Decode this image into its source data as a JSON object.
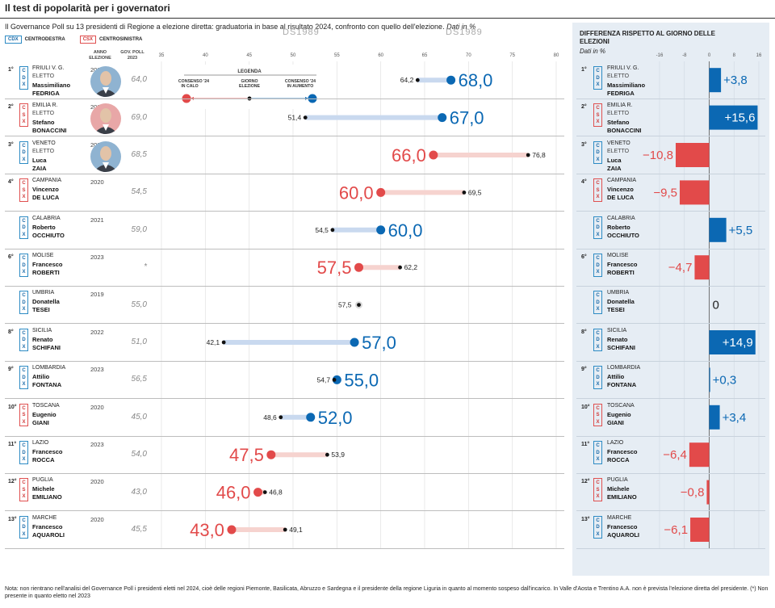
{
  "title": "Il test di popolarità per i governatori",
  "subtitle": "Il Governance Poll su 13 presidenti di Regione a elezione diretta: graduatoria in base al risultato 2024, confronto con quello dell'elezione.",
  "subtitle_unit": "Dati in %",
  "ghost_marks": [
    "DS1989",
    "DS1989"
  ],
  "coalition_legend": [
    {
      "code": "CDX",
      "label": "CENTRODESTRA",
      "color": "#1a6aa8"
    },
    {
      "code": "CSX",
      "label": "CENTROSINISTRA",
      "color": "#d03a3a"
    }
  ],
  "column_headers": {
    "year": "ANNO ELEZIONE",
    "poll": "GOV. POLL 2023"
  },
  "chart_legend": {
    "title": "LEGENDA",
    "left": "CONSENSO '24 IN CALO",
    "middle": "GIORNO ELEZIONE",
    "right": "CONSENSO '24 IN AUMENTO"
  },
  "panel": {
    "title": "DIFFERENZA RISPETTO AL GIORNO DELLE ELEZIONI",
    "unit": "Dati in %"
  },
  "eletto_label": "ELETTO",
  "colors": {
    "increase": "#0b68b3",
    "decrease": "#e24a4a",
    "increase_track": "#c9d9ef",
    "decrease_track": "#f6d3cf"
  },
  "footnote": "Nota: non rientrano nell'analisi del Governance Poll i presidenti eletti nel 2024, cioè delle regioni Piemonte, Basilicata, Abruzzo e Sardegna e il presidente della regione Liguria in quanto al momento sospeso dall'incarico. In Valle d'Aosta e Trentino A.A. non è prevista l'elezione diretta del presidente. (*) Non presente in quanto eletto nel 2023",
  "chart_data": [
    {
      "type": "dumbbell",
      "x_ticks": [
        "35",
        "40",
        "45",
        "50",
        "55",
        "60",
        "65",
        "70",
        "75",
        "80"
      ],
      "xlim": [
        35,
        80
      ],
      "rows": [
        {
          "rank": "1°",
          "coalition": "CDX",
          "region": "FRIULI V. G.",
          "eletto": true,
          "first": "Massimiliano",
          "last": "FEDRIGA",
          "year": "2023",
          "poll2023": "64,0",
          "election": 64.2,
          "consensus2024": 68.0,
          "election_label": "64,2",
          "consensus_label": "68,0",
          "photo": "avatar-fedriga"
        },
        {
          "rank": "2°",
          "coalition": "CSX",
          "region": "EMILIA R.",
          "eletto": true,
          "first": "Stefano",
          "last": "BONACCINI",
          "year": "2020",
          "poll2023": "69,0",
          "election": 51.4,
          "consensus2024": 67.0,
          "election_label": "51,4",
          "consensus_label": "67,0",
          "photo": "avatar-bonaccini"
        },
        {
          "rank": "3°",
          "coalition": "CDX",
          "region": "VENETO",
          "eletto": true,
          "first": "Luca",
          "last": "ZAIA",
          "year": "2020",
          "poll2023": "68,5",
          "election": 76.8,
          "consensus2024": 66.0,
          "election_label": "76,8",
          "consensus_label": "66,0",
          "photo": "avatar-zaia"
        },
        {
          "rank": "4°",
          "coalition": "CSX",
          "region": "CAMPANIA",
          "eletto": false,
          "first": "Vincenzo",
          "last": "DE LUCA",
          "year": "2020",
          "poll2023": "54,5",
          "election": 69.5,
          "consensus2024": 60.0,
          "election_label": "69,5",
          "consensus_label": "60,0"
        },
        {
          "rank": "",
          "coalition": "CDX",
          "region": "CALABRIA",
          "eletto": false,
          "first": "Roberto",
          "last": "OCCHIUTO",
          "year": "2021",
          "poll2023": "59,0",
          "election": 54.5,
          "consensus2024": 60.0,
          "election_label": "54,5",
          "consensus_label": "60,0"
        },
        {
          "rank": "6°",
          "coalition": "CDX",
          "region": "MOLISE",
          "eletto": false,
          "first": "Francesco",
          "last": "ROBERTI",
          "year": "2023",
          "poll2023": "*",
          "election": 62.2,
          "consensus2024": 57.5,
          "election_label": "62,2",
          "consensus_label": "57,5"
        },
        {
          "rank": "",
          "coalition": "CDX",
          "region": "UMBRIA",
          "eletto": false,
          "first": "Donatella",
          "last": "TESEI",
          "year": "2019",
          "poll2023": "55,0",
          "election": 57.5,
          "consensus2024": 57.5,
          "election_label": "57,5",
          "consensus_label": ""
        },
        {
          "rank": "8°",
          "coalition": "CDX",
          "region": "SICILIA",
          "eletto": false,
          "first": "Renato",
          "last": "SCHIFANI",
          "year": "2022",
          "poll2023": "51,0",
          "election": 42.1,
          "consensus2024": 57.0,
          "election_label": "42,1",
          "consensus_label": "57,0"
        },
        {
          "rank": "9°",
          "coalition": "CDX",
          "region": "LOMBARDIA",
          "eletto": false,
          "first": "Attilio",
          "last": "FONTANA",
          "year": "2023",
          "poll2023": "56,5",
          "election": 54.7,
          "consensus2024": 55.0,
          "election_label": "54,7",
          "consensus_label": "55,0"
        },
        {
          "rank": "10°",
          "coalition": "CSX",
          "region": "TOSCANA",
          "eletto": false,
          "first": "Eugenio",
          "last": "GIANI",
          "year": "2020",
          "poll2023": "45,0",
          "election": 48.6,
          "consensus2024": 52.0,
          "election_label": "48,6",
          "consensus_label": "52,0"
        },
        {
          "rank": "11°",
          "coalition": "CDX",
          "region": "LAZIO",
          "eletto": false,
          "first": "Francesco",
          "last": "ROCCA",
          "year": "2023",
          "poll2023": "54,0",
          "election": 53.9,
          "consensus2024": 47.5,
          "election_label": "53,9",
          "consensus_label": "47,5"
        },
        {
          "rank": "12°",
          "coalition": "CSX",
          "region": "PUGLIA",
          "eletto": false,
          "first": "Michele",
          "last": "EMILIANO",
          "year": "2020",
          "poll2023": "43,0",
          "election": 46.8,
          "consensus2024": 46.0,
          "election_label": "46,8",
          "consensus_label": "46,0"
        },
        {
          "rank": "13°",
          "coalition": "CDX",
          "region": "MARCHE",
          "eletto": false,
          "first": "Francesco",
          "last": "AQUAROLI",
          "year": "2020",
          "poll2023": "45,5",
          "election": 49.1,
          "consensus2024": 43.0,
          "election_label": "49,1",
          "consensus_label": "43,0"
        }
      ]
    },
    {
      "type": "bar",
      "title": "DIFFERENZA RISPETTO AL GIORNO DELLE ELEZIONI",
      "x_ticks": [
        "-16",
        "-8",
        "0",
        "8",
        "16"
      ],
      "xlim": [
        -16,
        16
      ],
      "values": [
        3.8,
        15.6,
        -10.8,
        -9.5,
        5.5,
        -4.7,
        0,
        14.9,
        0.3,
        3.4,
        -6.4,
        -0.8,
        -6.1
      ],
      "labels": [
        "+3,8",
        "+15,6",
        "−10,8",
        "−9,5",
        "+5,5",
        "−4,7",
        "0",
        "+14,9",
        "+0,3",
        "+3,4",
        "−6,4",
        "−0,8",
        "−6,1"
      ]
    }
  ]
}
